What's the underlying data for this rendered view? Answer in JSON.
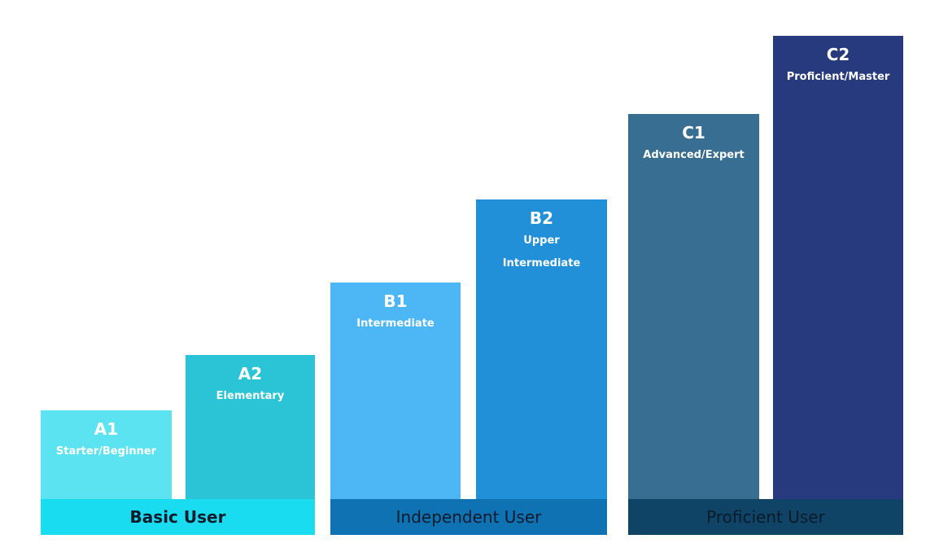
{
  "levels": [
    {
      "code": "A1",
      "label": "Starter/Beginner",
      "color": "#5ce3f2"
    },
    {
      "code": "A2",
      "label": "Elementary",
      "color": "#2ac4d6"
    },
    {
      "code": "B1",
      "label": "Intermediate",
      "color": "#4db6f5"
    },
    {
      "code": "B2",
      "label_line1": "Upper",
      "label_line2": "Intermediate",
      "color": "#2190d8"
    },
    {
      "code": "C1",
      "label": "Advanced/Expert",
      "color": "#386e91"
    },
    {
      "code": "C2",
      "label": "Proficient/Master",
      "color": "#263a7d"
    }
  ],
  "groups": [
    {
      "label": "Basic User",
      "color": "#1adcf0",
      "text_color": "#0a1a2a"
    },
    {
      "label": "Independent User",
      "color": "#0e72b3",
      "text_color": "#0a1a2a"
    },
    {
      "label": "Proficient User",
      "color": "#0f4466",
      "text_color": "#0a1a2a"
    }
  ]
}
